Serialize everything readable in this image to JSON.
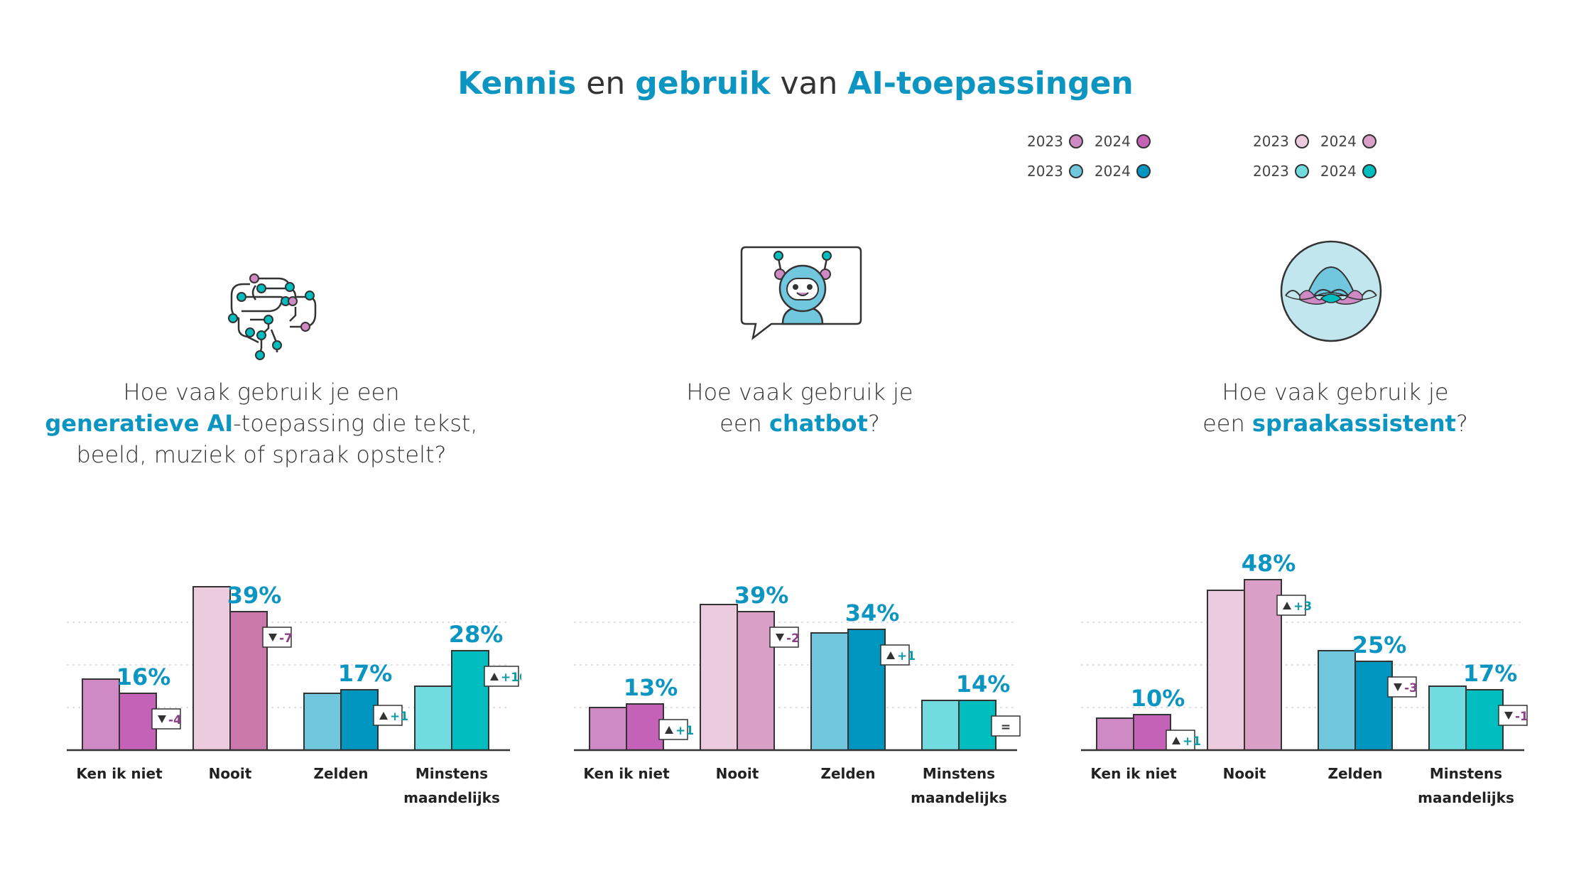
{
  "title": {
    "p1": "Kennis",
    "p2": " en ",
    "p3": "gebruik",
    "p4": " van ",
    "p5": "AI-toepassingen"
  },
  "legend": [
    {
      "rows": [
        {
          "y1": "2023",
          "c1": "#cf8ac6",
          "y2": "2024",
          "c2": "#c462b7"
        },
        {
          "y1": "2023",
          "c1": "#71c7de",
          "y2": "2024",
          "c2": "#0096bf"
        }
      ]
    },
    {
      "rows": [
        {
          "y1": "2023",
          "c1": "#eccbdf",
          "y2": "2024",
          "c2": "#d99fc6"
        },
        {
          "y1": "2023",
          "c1": "#72dbdf",
          "y2": "2024",
          "c2": "#00bdc0"
        }
      ]
    }
  ],
  "questions": [
    {
      "pre": "Hoe vaak gebruik je een",
      "hl": "generatieve AI",
      "post": "-toepassing die tekst,",
      "line3": "beeld, muziek of spraak opstelt?"
    },
    {
      "pre": "Hoe vaak gebruik je",
      "line2pre": "een ",
      "hl": "chatbot",
      "post": "?"
    },
    {
      "pre": "Hoe vaak gebruik je",
      "line2pre": "een ",
      "hl": "spraakassistent",
      "post": "?"
    }
  ],
  "chart_data": [
    {
      "type": "bar",
      "categories": [
        "Ken ik niet",
        "Nooit",
        "Zelden",
        "Minstens maandelijks"
      ],
      "series": [
        {
          "values": [
            20,
            46,
            16,
            18
          ]
        },
        {
          "values": [
            16,
            39,
            17,
            28
          ]
        }
      ],
      "labels": [
        "16%",
        "39%",
        "17%",
        "28%"
      ],
      "changes": [
        {
          "dir": "down",
          "text": "-4"
        },
        {
          "dir": "down",
          "text": "-7"
        },
        {
          "dir": "up",
          "text": "+1"
        },
        {
          "dir": "up",
          "text": "+10"
        }
      ],
      "colors_2023": [
        "#cf8ac6",
        "#eccbdf",
        "#71c7de",
        "#72dbdf"
      ],
      "colors_2024": [
        "#c462b7",
        "#cb77ab",
        "#0096bf",
        "#00bdc0"
      ],
      "ylim": [
        0,
        50
      ],
      "grid": true
    },
    {
      "type": "bar",
      "categories": [
        "Ken ik niet",
        "Nooit",
        "Zelden",
        "Minstens maandelijks"
      ],
      "series": [
        {
          "values": [
            12,
            41,
            33,
            14
          ]
        },
        {
          "values": [
            13,
            39,
            34,
            14
          ]
        }
      ],
      "labels": [
        "13%",
        "39%",
        "34%",
        "14%"
      ],
      "changes": [
        {
          "dir": "up",
          "text": "+1"
        },
        {
          "dir": "down",
          "text": "-2"
        },
        {
          "dir": "up",
          "text": "+1"
        },
        {
          "dir": "eq",
          "text": "="
        }
      ],
      "colors_2023": [
        "#cf8ac6",
        "#eccbdf",
        "#71c7de",
        "#72dbdf"
      ],
      "colors_2024": [
        "#c462b7",
        "#d99fc6",
        "#0096bf",
        "#00bdc0"
      ],
      "ylim": [
        0,
        50
      ],
      "grid": true
    },
    {
      "type": "bar",
      "categories": [
        "Ken ik niet",
        "Nooit",
        "Zelden",
        "Minstens maandelijks"
      ],
      "series": [
        {
          "values": [
            9,
            45,
            28,
            18
          ]
        },
        {
          "values": [
            10,
            48,
            25,
            17
          ]
        }
      ],
      "labels": [
        "10%",
        "48%",
        "25%",
        "17%"
      ],
      "changes": [
        {
          "dir": "up",
          "text": "+1"
        },
        {
          "dir": "up",
          "text": "+3"
        },
        {
          "dir": "down",
          "text": "-3"
        },
        {
          "dir": "down",
          "text": "-1"
        }
      ],
      "colors_2023": [
        "#cf8ac6",
        "#eccbdf",
        "#71c7de",
        "#72dbdf"
      ],
      "colors_2024": [
        "#c462b7",
        "#d99fc6",
        "#0096bf",
        "#00bdc0"
      ],
      "ylim": [
        0,
        50
      ],
      "grid": true
    }
  ]
}
